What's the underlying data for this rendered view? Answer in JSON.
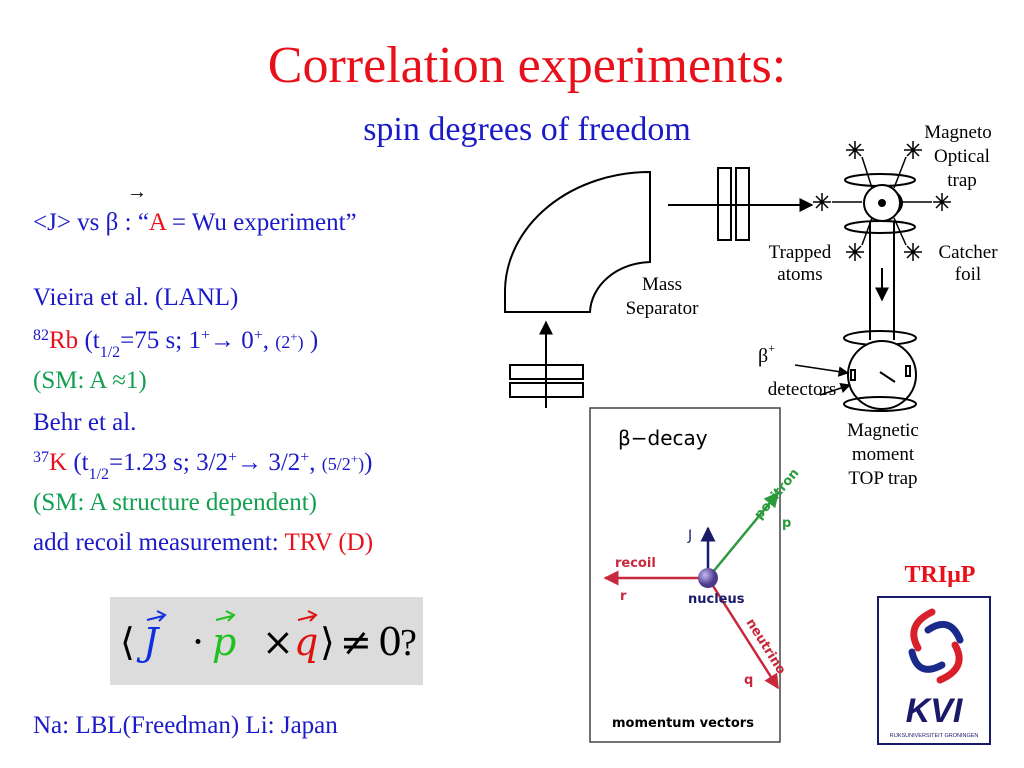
{
  "title": "Correlation experiments:",
  "subtitle": "spin degrees of freedom",
  "arrow": "→",
  "body_lines": [
    [
      "<J> vs β : “",
      "A",
      " = Wu experiment”"
    ],
    [
      "Vieira et al. (LANL)"
    ],
    [
      "82",
      "Rb",
      " (t",
      "1/2",
      "=75 s; 1",
      "+",
      "→ 0",
      "+",
      ", ",
      "(2",
      "+",
      ")",
      " )"
    ],
    [
      "(SM: A ≈1)"
    ],
    [
      "Behr et al."
    ],
    [
      "37",
      "K",
      " (t",
      "1/2",
      "=1.23 s; 3/2",
      "+",
      "→ 3/2",
      "+",
      ", ",
      "(5/2",
      "+",
      ")",
      ")"
    ],
    [
      "(SM: A  structure dependent)"
    ],
    [
      "add recoil measurement: ",
      "TRV (D)"
    ]
  ],
  "formula": [
    "⟨",
    "J",
    "·",
    "p",
    "×",
    "q",
    "⟩",
    "≠",
    "0",
    "?"
  ],
  "footer": "Na: LBL(Freedman)  Li: Japan",
  "diagram": {
    "magneto_optical_trap": [
      "Magneto",
      "Optical",
      "trap"
    ],
    "trapped_atoms": [
      "Trapped",
      "atoms"
    ],
    "catcher_foil": [
      "Catcher",
      "foil"
    ],
    "mass_separator": [
      "Mass",
      "Separator"
    ],
    "beta_plus": [
      "β",
      "+"
    ],
    "detectors": "detectors",
    "top_trap": [
      "Magnetic",
      "moment",
      "TOP trap"
    ]
  },
  "inset": {
    "title": "β−decay",
    "j": "J",
    "positron": "positron",
    "p": "p",
    "recoil": "recoil",
    "r": "r",
    "nucleus": "nucleus",
    "neutrino": "neutrino",
    "q": "q",
    "caption": "momentum vectors"
  },
  "logo": {
    "name": "TRIμP",
    "kvi": "KVI",
    "university": "RIJKSUNIVERSITEIT GRONINGEN"
  }
}
